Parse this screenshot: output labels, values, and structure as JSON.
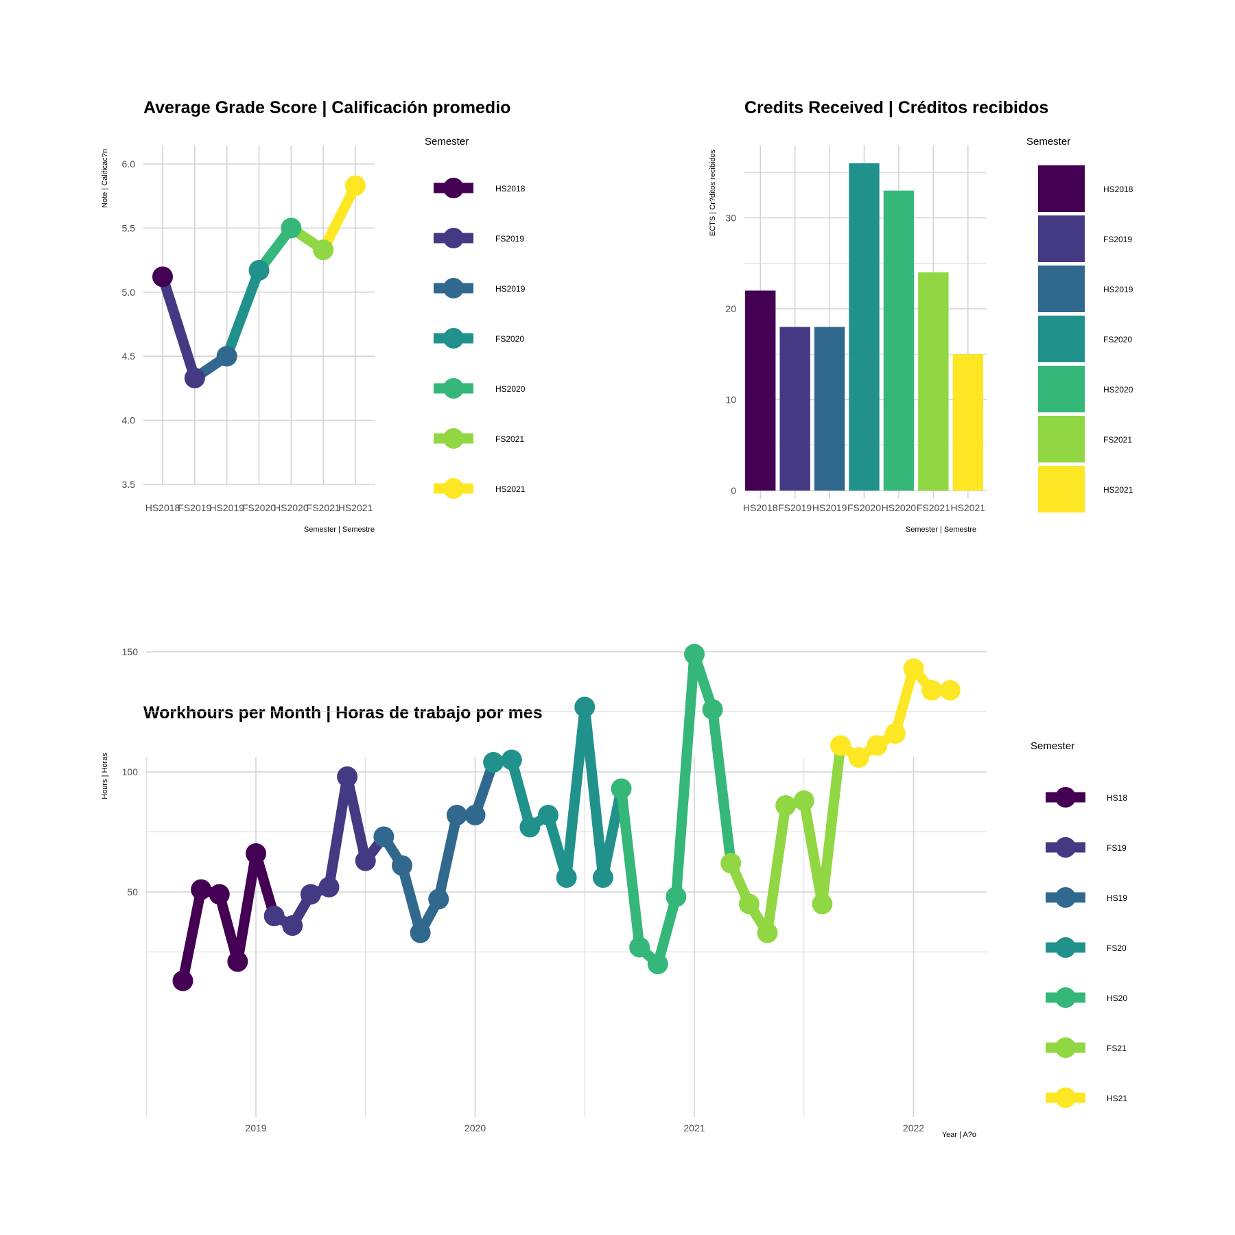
{
  "palette": [
    "#440154",
    "#443983",
    "#31688e",
    "#21918c",
    "#35b779",
    "#90d743",
    "#fde725"
  ],
  "chart_data": [
    {
      "type": "line",
      "title": "Average Grade Score | Calificación promedio",
      "xlabel": "Semester | Semestre",
      "ylabel": "Note | Calificac?n",
      "categories": [
        "HS2018",
        "FS2019",
        "HS2019",
        "FS2020",
        "HS2020",
        "FS2021",
        "HS2021"
      ],
      "values": [
        5.12,
        4.33,
        4.5,
        5.17,
        5.5,
        5.33,
        5.83
      ],
      "ylim": [
        3.5,
        6.0
      ],
      "yticks": [
        "3.5",
        "4.0",
        "4.5",
        "5.0",
        "5.5",
        "6.0"
      ],
      "grid": true,
      "legend": {
        "title": "Semester",
        "position": "right",
        "labels": [
          "HS2018",
          "FS2019",
          "HS2019",
          "FS2020",
          "HS2020",
          "FS2021",
          "HS2021"
        ]
      }
    },
    {
      "type": "bar",
      "title": "Credits Received | Créditos recibidos",
      "xlabel": "Semester | Semestre",
      "ylabel": "ECTS | Cr?ditos recibidos",
      "categories": [
        "HS2018",
        "FS2019",
        "HS2019",
        "FS2020",
        "HS2020",
        "FS2021",
        "HS2021"
      ],
      "values": [
        22,
        18,
        18,
        36,
        33,
        24,
        15
      ],
      "ylim": [
        0,
        36
      ],
      "yticks": [
        "0",
        "10",
        "20",
        "30"
      ],
      "grid": true,
      "legend": {
        "title": "Semester",
        "position": "right",
        "labels": [
          "HS2018",
          "FS2019",
          "HS2019",
          "FS2020",
          "HS2020",
          "FS2021",
          "HS2021"
        ]
      }
    },
    {
      "type": "line",
      "title": "Workhours per Month | Horas de trabajo por mes",
      "xlabel": "Year | A?o",
      "ylabel": "Hours | Horas",
      "xticks": [
        "2019",
        "2020",
        "2021",
        "2022"
      ],
      "yticks": [
        "50",
        "100",
        "150"
      ],
      "grid": true,
      "series": [
        {
          "name": "HS18",
          "points": [
            [
              "2018-09",
              13
            ],
            [
              "2018-10",
              51
            ],
            [
              "2018-11",
              49
            ],
            [
              "2018-12",
              21
            ],
            [
              "2019-01",
              66
            ],
            [
              "2019-02",
              40
            ]
          ]
        },
        {
          "name": "FS19",
          "points": [
            [
              "2019-02",
              40
            ],
            [
              "2019-03",
              36
            ],
            [
              "2019-04",
              49
            ],
            [
              "2019-05",
              52
            ],
            [
              "2019-06",
              98
            ],
            [
              "2019-07",
              63
            ],
            [
              "2019-08",
              73
            ]
          ]
        },
        {
          "name": "HS19",
          "points": [
            [
              "2019-08",
              73
            ],
            [
              "2019-09",
              61
            ],
            [
              "2019-10",
              33
            ],
            [
              "2019-11",
              47
            ],
            [
              "2019-12",
              82
            ],
            [
              "2020-01",
              82
            ],
            [
              "2020-02",
              104
            ]
          ]
        },
        {
          "name": "FS20",
          "points": [
            [
              "2020-02",
              104
            ],
            [
              "2020-03",
              105
            ],
            [
              "2020-04",
              77
            ],
            [
              "2020-05",
              82
            ],
            [
              "2020-06",
              56
            ],
            [
              "2020-07",
              127
            ],
            [
              "2020-08",
              56
            ],
            [
              "2020-09",
              93
            ]
          ]
        },
        {
          "name": "HS20",
          "points": [
            [
              "2020-09",
              93
            ],
            [
              "2020-10",
              27
            ],
            [
              "2020-11",
              20
            ],
            [
              "2020-12",
              48
            ],
            [
              "2021-01",
              149
            ],
            [
              "2021-02",
              126
            ],
            [
              "2021-03",
              62
            ]
          ]
        },
        {
          "name": "FS21",
          "points": [
            [
              "2021-03",
              62
            ],
            [
              "2021-04",
              45
            ],
            [
              "2021-05",
              33
            ],
            [
              "2021-06",
              86
            ],
            [
              "2021-07",
              88
            ],
            [
              "2021-08",
              45
            ],
            [
              "2021-09",
              111
            ]
          ]
        },
        {
          "name": "HS21",
          "points": [
            [
              "2021-09",
              111
            ],
            [
              "2021-10",
              106
            ],
            [
              "2021-11",
              111
            ],
            [
              "2021-12",
              116
            ],
            [
              "2022-01",
              143
            ],
            [
              "2022-02",
              134
            ],
            [
              "2022-03",
              134
            ]
          ]
        }
      ],
      "legend": {
        "title": "Semester",
        "position": "right",
        "labels": [
          "HS18",
          "FS19",
          "HS19",
          "FS20",
          "HS20",
          "FS21",
          "HS21"
        ]
      }
    }
  ]
}
